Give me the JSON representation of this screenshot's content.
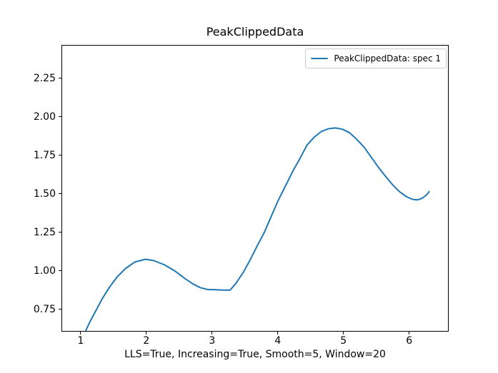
{
  "figure": {
    "title": "PeakClippedData",
    "xlabel": "LLS=True, Increasing=True, Smooth=5, Window=20",
    "background_color": "#ffffff",
    "spine_color": "#000000"
  },
  "legend": {
    "position": "upper right",
    "border_color": "#cccccc",
    "entries": [
      {
        "label": "PeakClippedData: spec 1",
        "color": "#1f77b4"
      }
    ]
  },
  "chart_data": {
    "type": "line",
    "title": "PeakClippedData",
    "xlabel": "LLS=True, Increasing=True, Smooth=5, Window=20",
    "ylabel": "",
    "grid": false,
    "legend_position": "upper right",
    "xlim": [
      0.718,
      6.59
    ],
    "ylim": [
      0.611,
      2.462
    ],
    "xticks": [
      1,
      2,
      3,
      4,
      5,
      6
    ],
    "xtick_labels": [
      "1",
      "2",
      "3",
      "4",
      "5",
      "6"
    ],
    "yticks": [
      0.75,
      1.0,
      1.25,
      1.5,
      1.75,
      2.0,
      2.25
    ],
    "ytick_labels": [
      "0.75",
      "1.00",
      "1.25",
      "1.50",
      "1.75",
      "2.00",
      "2.25"
    ],
    "series": [
      {
        "name": "PeakClippedData: spec 1",
        "color": "#1f77b4",
        "line_width": 2,
        "x": [
          1.076,
          1.141,
          1.228,
          1.325,
          1.433,
          1.553,
          1.683,
          1.823,
          1.986,
          2.116,
          2.278,
          2.441,
          2.582,
          2.712,
          2.82,
          2.928,
          3.058,
          3.167,
          3.275,
          3.362,
          3.47,
          3.578,
          3.687,
          3.795,
          3.903,
          4.012,
          4.12,
          4.228,
          4.337,
          4.445,
          4.553,
          4.662,
          4.77,
          4.878,
          4.987,
          5.095,
          5.203,
          5.312,
          5.42,
          5.528,
          5.637,
          5.745,
          5.854,
          5.962,
          6.049,
          6.125,
          6.2,
          6.266,
          6.31
        ],
        "y": [
          0.611,
          0.671,
          0.74,
          0.818,
          0.892,
          0.961,
          1.016,
          1.058,
          1.076,
          1.067,
          1.039,
          0.998,
          0.952,
          0.915,
          0.892,
          0.88,
          0.878,
          0.876,
          0.876,
          0.919,
          0.988,
          1.071,
          1.163,
          1.251,
          1.357,
          1.463,
          1.555,
          1.647,
          1.73,
          1.817,
          1.868,
          1.905,
          1.923,
          1.928,
          1.919,
          1.896,
          1.854,
          1.804,
          1.739,
          1.675,
          1.615,
          1.56,
          1.514,
          1.481,
          1.465,
          1.461,
          1.472,
          1.495,
          1.518
        ],
        "annotations": {
          "local_max_1": {
            "x": 1.99,
            "y": 1.08
          },
          "flat_local_min": {
            "x_range": [
              2.93,
              3.28
            ],
            "y": 0.88
          },
          "global_max": {
            "x": 4.88,
            "y": 1.93
          },
          "local_min_2": {
            "x": 6.12,
            "y": 1.46
          },
          "end_point": {
            "x": 6.31,
            "y": 1.52
          }
        }
      }
    ]
  }
}
